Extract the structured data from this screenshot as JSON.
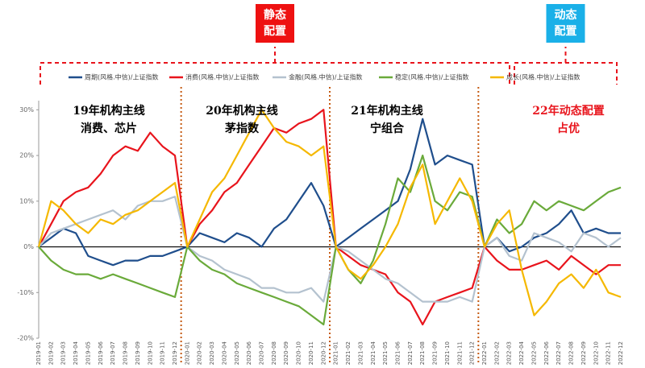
{
  "chart_data": {
    "type": "line",
    "categories": [
      "2019-01",
      "2019-02",
      "2019-03",
      "2019-04",
      "2019-05",
      "2019-06",
      "2019-07",
      "2019-08",
      "2019-09",
      "2019-10",
      "2019-11",
      "2019-12",
      "2020-01",
      "2020-02",
      "2020-03",
      "2020-04",
      "2020-05",
      "2020-06",
      "2020-07",
      "2020-08",
      "2020-09",
      "2020-10",
      "2020-11",
      "2020-12",
      "2021-01",
      "2021-02",
      "2021-03",
      "2021-04",
      "2021-05",
      "2021-06",
      "2021-07",
      "2021-08",
      "2021-09",
      "2021-10",
      "2021-11",
      "2021-12",
      "2022-01",
      "2022-02",
      "2022-03",
      "2022-04",
      "2022-05",
      "2022-06",
      "2022-07",
      "2022-08",
      "2022-09",
      "2022-10",
      "2022-11",
      "2022-12"
    ],
    "series": [
      {
        "name": "周期(风格.中信)/上证指数",
        "color": "#1f4e8c",
        "values": [
          0,
          2,
          4,
          3,
          -2,
          -3,
          -4,
          -3,
          -3,
          -2,
          -2,
          -1,
          0,
          3,
          2,
          1,
          3,
          2,
          0,
          4,
          6,
          10,
          14,
          9,
          0,
          2,
          4,
          6,
          8,
          10,
          17,
          28,
          18,
          20,
          19,
          18,
          0,
          2,
          -1,
          0,
          2,
          3,
          5,
          8,
          3,
          4,
          3,
          3
        ]
      },
      {
        "name": "消费(风格.中信)/上证指数",
        "color": "#e8141c",
        "values": [
          0,
          5,
          10,
          12,
          13,
          16,
          20,
          22,
          21,
          25,
          22,
          20,
          0,
          5,
          8,
          12,
          14,
          18,
          22,
          26,
          25,
          27,
          28,
          30,
          0,
          -2,
          -4,
          -5,
          -6,
          -10,
          -12,
          -17,
          -12,
          -11,
          -10,
          -9,
          0,
          -3,
          -5,
          -5,
          -4,
          -3,
          -5,
          -2,
          -4,
          -6,
          -4,
          -4
        ]
      },
      {
        "name": "金融(风格.中信)/上证指数",
        "color": "#b4c2cf",
        "values": [
          0,
          3,
          4,
          5,
          6,
          7,
          8,
          6,
          9,
          10,
          10,
          11,
          0,
          -2,
          -3,
          -5,
          -6,
          -7,
          -9,
          -9,
          -10,
          -10,
          -9,
          -12,
          0,
          -1,
          -3,
          -5,
          -7,
          -8,
          -10,
          -12,
          -12,
          -12,
          -11,
          -12,
          0,
          2,
          -2,
          -3,
          3,
          2,
          1,
          -1,
          3,
          2,
          0,
          2
        ]
      },
      {
        "name": "稳定(风格.中信)/上证指数",
        "color": "#6aaa3a",
        "values": [
          0,
          -3,
          -5,
          -6,
          -6,
          -7,
          -6,
          -7,
          -8,
          -9,
          -10,
          -11,
          0,
          -3,
          -5,
          -6,
          -8,
          -9,
          -10,
          -11,
          -12,
          -13,
          -15,
          -17,
          0,
          -5,
          -8,
          -3,
          5,
          15,
          12,
          20,
          10,
          8,
          12,
          11,
          0,
          6,
          3,
          5,
          10,
          8,
          10,
          9,
          8,
          10,
          12,
          13
        ]
      },
      {
        "name": "成长(风格.中信)/上证指数",
        "color": "#f5b800",
        "values": [
          0,
          10,
          8,
          5,
          3,
          6,
          5,
          7,
          8,
          10,
          12,
          14,
          0,
          6,
          12,
          15,
          20,
          25,
          30,
          26,
          23,
          22,
          20,
          22,
          0,
          -5,
          -7,
          -4,
          0,
          5,
          13,
          18,
          5,
          10,
          15,
          10,
          0,
          5,
          8,
          -5,
          -15,
          -12,
          -8,
          -6,
          -9,
          -5,
          -10,
          -11
        ]
      }
    ],
    "ylim": [
      -20,
      32
    ],
    "yticks": [
      {
        "value": -20,
        "label": "-20%"
      },
      {
        "value": -10,
        "label": "-10%"
      },
      {
        "value": 0,
        "label": "0%"
      },
      {
        "value": 10,
        "label": "10%"
      },
      {
        "value": 20,
        "label": "20%"
      },
      {
        "value": 30,
        "label": "30%"
      }
    ],
    "annotations": [
      {
        "lines": [
          "19年机构主线",
          "消费、芯片"
        ],
        "color": "#000000"
      },
      {
        "lines": [
          "20年机构主线",
          "茅指数"
        ],
        "color": "#000000"
      },
      {
        "lines": [
          "21年机构主线",
          "宁组合"
        ],
        "color": "#000000"
      },
      {
        "lines": [
          "22年动态配置",
          "占优"
        ],
        "color": "#e8141c"
      }
    ],
    "brackets": [
      {
        "lines": [
          "静态",
          "配置"
        ],
        "color": "#ee1111"
      },
      {
        "lines": [
          "动态",
          "配置"
        ],
        "color": "#1ab0e8"
      }
    ]
  }
}
